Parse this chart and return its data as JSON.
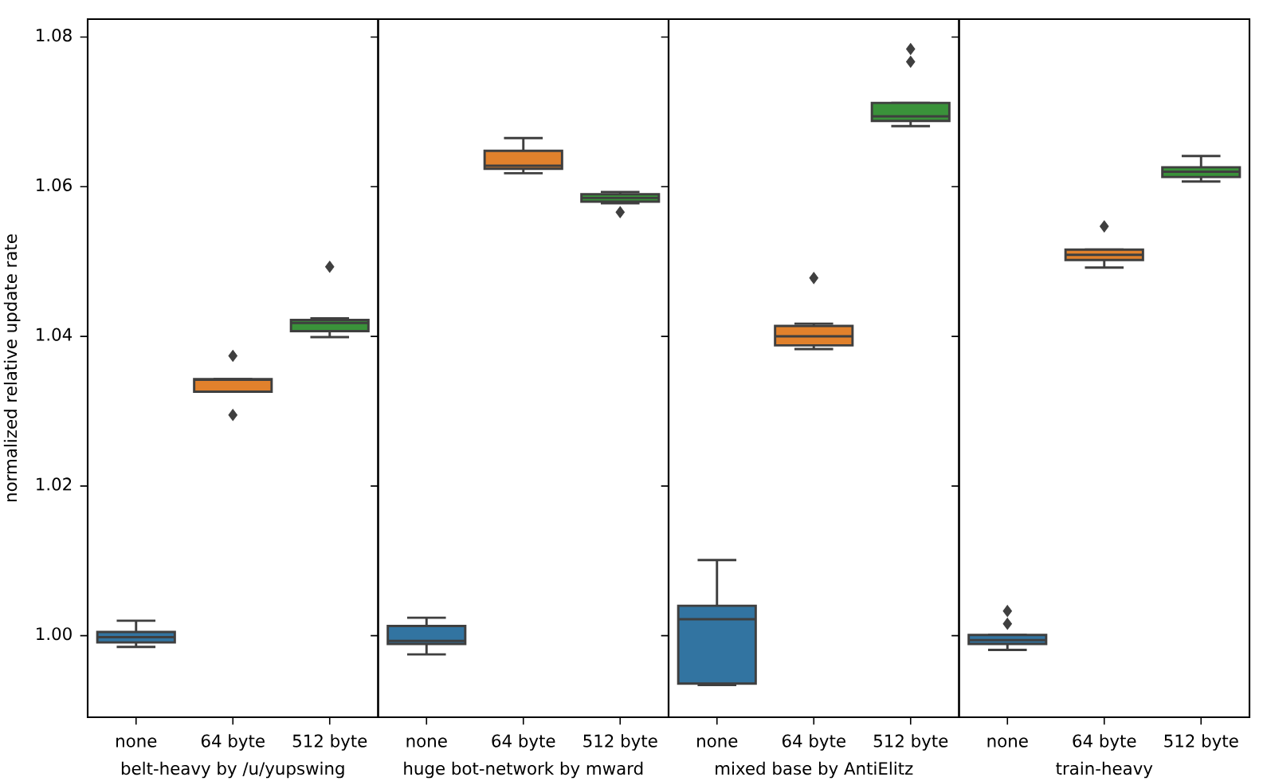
{
  "chart_data": [
    {
      "type": "box",
      "xlabel": "belt-heavy by /u/yupswing",
      "ylabel": "normalized relative update rate",
      "categories": [
        "none",
        "64 byte",
        "512 byte"
      ],
      "colors": [
        "#3274a1",
        "#e1812c",
        "#3a923a"
      ],
      "boxes": [
        {
          "low": 0.9985,
          "q1": 0.9991,
          "median": 0.9998,
          "q3": 1.0005,
          "high": 1.002
        },
        {
          "low": 1.0326,
          "q1": 1.0326,
          "median": 1.0342,
          "q3": 1.0343,
          "high": 1.0343,
          "outliers": [
            1.0374,
            1.0295
          ]
        },
        {
          "low": 1.0399,
          "q1": 1.0407,
          "median": 1.0418,
          "q3": 1.0422,
          "high": 1.0424,
          "outliers": [
            1.0493
          ]
        }
      ],
      "ylim": [
        0.9891,
        1.0824
      ],
      "yticks": [
        {
          "value": 1.0,
          "label": "1.00"
        },
        {
          "value": 1.02,
          "label": "1.02"
        },
        {
          "value": 1.04,
          "label": "1.04"
        },
        {
          "value": 1.06,
          "label": "1.06"
        },
        {
          "value": 1.08,
          "label": "1.08"
        }
      ]
    },
    {
      "type": "box",
      "xlabel": "huge bot-network by mward",
      "categories": [
        "none",
        "64 byte",
        "512 byte"
      ],
      "colors": [
        "#3274a1",
        "#e1812c",
        "#3a923a"
      ],
      "boxes": [
        {
          "low": 0.9975,
          "q1": 0.9989,
          "median": 0.9993,
          "q3": 1.0013,
          "high": 1.0024
        },
        {
          "low": 1.0618,
          "q1": 1.0624,
          "median": 1.0628,
          "q3": 1.0648,
          "high": 1.0665
        },
        {
          "low": 1.0578,
          "q1": 1.058,
          "median": 1.0585,
          "q3": 1.059,
          "high": 1.0593,
          "outliers": [
            1.0566
          ]
        }
      ],
      "ylim": [
        0.9891,
        1.0824
      ],
      "yticks": [
        {
          "value": 1.0,
          "label": null
        },
        {
          "value": 1.02,
          "label": null
        },
        {
          "value": 1.04,
          "label": null
        },
        {
          "value": 1.06,
          "label": null
        },
        {
          "value": 1.08,
          "label": null
        }
      ],
      "tick_labels": "x"
    },
    {
      "type": "box",
      "xlabel": "mixed base by AntiElitz",
      "categories": [
        "none",
        "64 byte",
        "512 byte"
      ],
      "colors": [
        "#3274a1",
        "#e1812c",
        "#3a923a"
      ],
      "boxes": [
        {
          "low": 0.9934,
          "q1": 0.9936,
          "median": 1.0022,
          "q3": 1.004,
          "high": 1.0101
        },
        {
          "low": 1.0383,
          "q1": 1.0388,
          "median": 1.04,
          "q3": 1.0414,
          "high": 1.0417,
          "outliers": [
            1.0478
          ]
        },
        {
          "low": 1.0681,
          "q1": 1.0688,
          "median": 1.0694,
          "q3": 1.0712,
          "high": 1.0712,
          "outliers": [
            1.0784,
            1.0767
          ]
        }
      ],
      "ylim": [
        0.9891,
        1.0824
      ],
      "yticks": [
        {
          "value": 1.0,
          "label": null
        },
        {
          "value": 1.02,
          "label": null
        },
        {
          "value": 1.04,
          "label": null
        },
        {
          "value": 1.06,
          "label": null
        },
        {
          "value": 1.08,
          "label": null
        }
      ],
      "tick_labels": "x"
    },
    {
      "type": "box",
      "xlabel": "train-heavy",
      "categories": [
        "none",
        "64 byte",
        "512 byte"
      ],
      "colors": [
        "#3274a1",
        "#e1812c",
        "#3a923a"
      ],
      "boxes": [
        {
          "low": 0.9981,
          "q1": 0.9989,
          "median": 0.9994,
          "q3": 1.0001,
          "high": 1.0001,
          "outliers": [
            1.0033,
            1.0016
          ]
        },
        {
          "low": 1.0492,
          "q1": 1.0502,
          "median": 1.0509,
          "q3": 1.0516,
          "high": 1.0516,
          "outliers": [
            1.0547
          ]
        },
        {
          "low": 1.0607,
          "q1": 1.0613,
          "median": 1.062,
          "q3": 1.0626,
          "high": 1.0641
        }
      ],
      "ylim": [
        0.9891,
        1.0824
      ],
      "yticks": [
        {
          "value": 1.0,
          "label": null
        },
        {
          "value": 1.02,
          "label": null
        },
        {
          "value": 1.04,
          "label": null
        },
        {
          "value": 1.06,
          "label": null
        },
        {
          "value": 1.08,
          "label": null
        }
      ],
      "tick_labels": "x"
    }
  ]
}
